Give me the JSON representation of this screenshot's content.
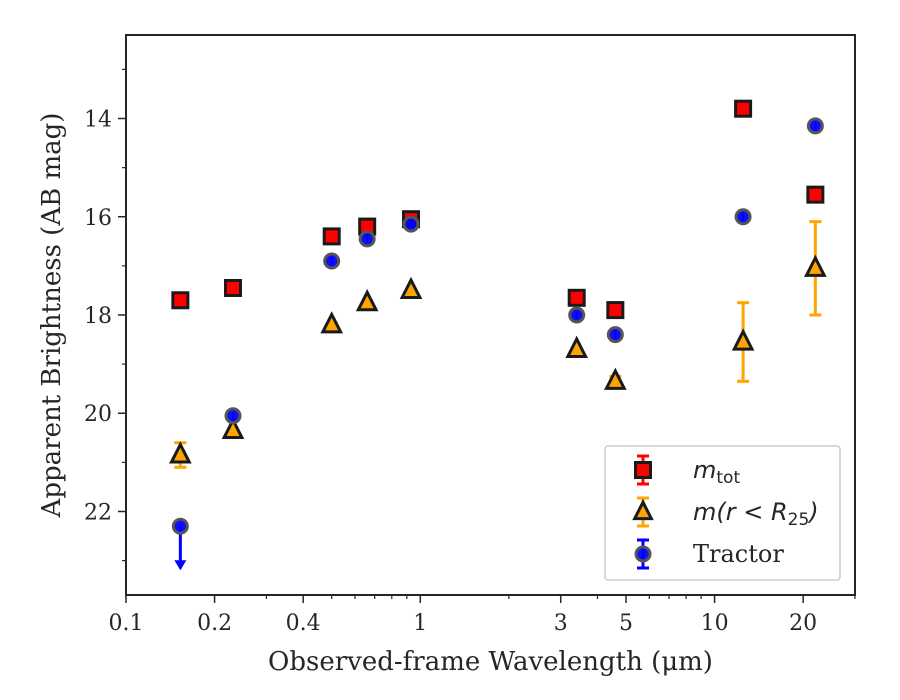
{
  "chart_data": {
    "type": "scatter",
    "xlabel": "Observed-frame Wavelength (μm)",
    "ylabel": "Apparent Brightness (AB mag)",
    "x_scale": "log",
    "xlim": [
      0.1,
      30
    ],
    "ylim": [
      23.7,
      12.3
    ],
    "y_inverted": true,
    "x_ticks": [
      {
        "value": 0.1,
        "label": "0.1"
      },
      {
        "value": 0.2,
        "label": "0.2"
      },
      {
        "value": 0.4,
        "label": "0.4"
      },
      {
        "value": 1,
        "label": "1"
      },
      {
        "value": 3,
        "label": "3"
      },
      {
        "value": 5,
        "label": "5"
      },
      {
        "value": 10,
        "label": "10"
      },
      {
        "value": 20,
        "label": "20"
      }
    ],
    "y_ticks": [
      {
        "value": 14,
        "label": "14"
      },
      {
        "value": 16,
        "label": "16"
      },
      {
        "value": 18,
        "label": "18"
      },
      {
        "value": 20,
        "label": "20"
      },
      {
        "value": 22,
        "label": "22"
      }
    ],
    "grid": false,
    "legend_position": "lower-right",
    "series": [
      {
        "name": "m_tot",
        "legend_main": "m",
        "legend_sub": "tot",
        "marker": "square",
        "color": "#ff0000",
        "edge": "#1a1a1a",
        "points": [
          {
            "x": 0.153,
            "y": 17.7,
            "err": 0
          },
          {
            "x": 0.231,
            "y": 17.45,
            "err": 0
          },
          {
            "x": 0.5,
            "y": 16.4,
            "err": 0
          },
          {
            "x": 0.66,
            "y": 16.2,
            "err": 0
          },
          {
            "x": 0.93,
            "y": 16.05,
            "err": 0
          },
          {
            "x": 3.4,
            "y": 17.65,
            "err": 0
          },
          {
            "x": 4.6,
            "y": 17.9,
            "err": 0
          },
          {
            "x": 12.5,
            "y": 13.8,
            "err": 0
          },
          {
            "x": 22.0,
            "y": 15.55,
            "err": 0
          }
        ]
      },
      {
        "name": "m(r < R25)",
        "legend_main": "m(r < R",
        "legend_sub": "25",
        "legend_tail": ")",
        "marker": "triangle",
        "color": "#ffa500",
        "edge": "#1a1a1a",
        "points": [
          {
            "x": 0.153,
            "y": 20.85,
            "err": 0.25
          },
          {
            "x": 0.231,
            "y": 20.35,
            "err": 0
          },
          {
            "x": 0.5,
            "y": 18.2,
            "err": 0
          },
          {
            "x": 0.66,
            "y": 17.75,
            "err": 0
          },
          {
            "x": 0.93,
            "y": 17.5,
            "err": 0
          },
          {
            "x": 3.4,
            "y": 18.7,
            "err": 0
          },
          {
            "x": 4.6,
            "y": 19.35,
            "err": 0.1
          },
          {
            "x": 12.5,
            "y": 18.55,
            "err": 0.8
          },
          {
            "x": 22.0,
            "y": 17.05,
            "err": 0.95
          }
        ]
      },
      {
        "name": "Tractor",
        "legend_main": "Tractor",
        "marker": "circle",
        "color": "#0000ff",
        "edge": "#555555",
        "points": [
          {
            "x": 0.153,
            "y": 22.3,
            "err": 0,
            "upper_limit": true
          },
          {
            "x": 0.231,
            "y": 20.05,
            "err": 0
          },
          {
            "x": 0.5,
            "y": 16.9,
            "err": 0
          },
          {
            "x": 0.66,
            "y": 16.45,
            "err": 0
          },
          {
            "x": 0.93,
            "y": 16.15,
            "err": 0
          },
          {
            "x": 3.4,
            "y": 18.0,
            "err": 0
          },
          {
            "x": 4.6,
            "y": 18.4,
            "err": 0
          },
          {
            "x": 12.5,
            "y": 16.0,
            "err": 0
          },
          {
            "x": 22.0,
            "y": 14.15,
            "err": 0
          }
        ]
      }
    ]
  }
}
